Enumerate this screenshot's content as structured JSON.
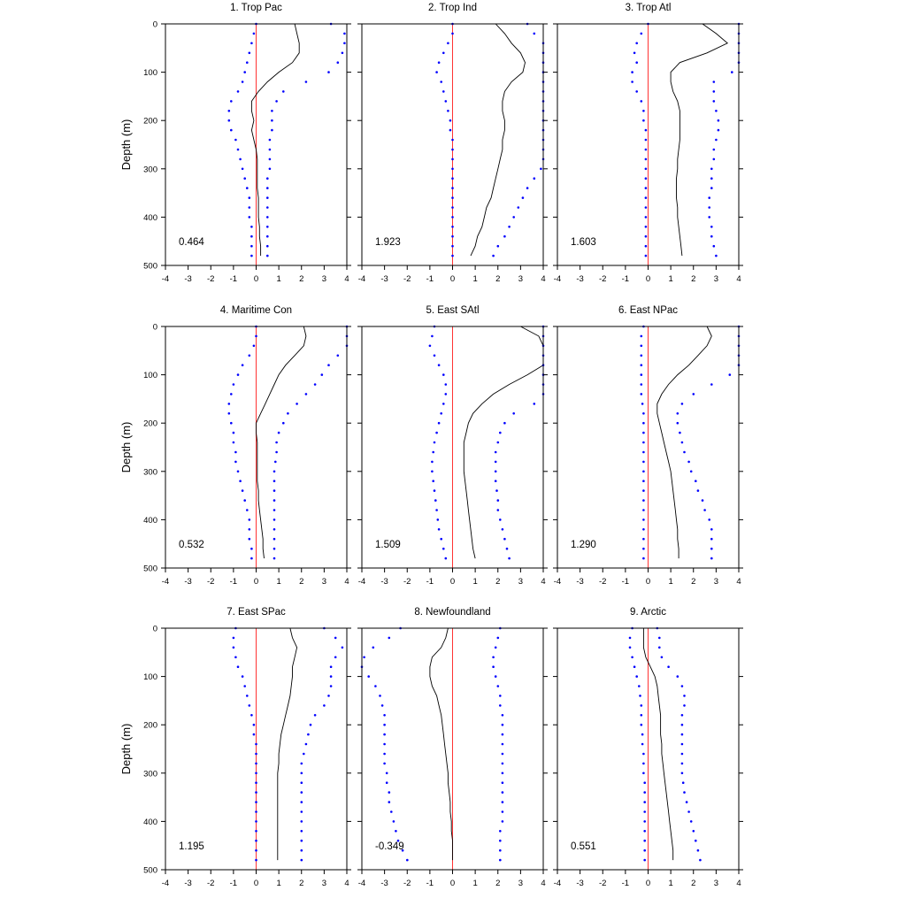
{
  "chart_data": {
    "type": "line",
    "layout": "3x3 panel grid",
    "y_axis_label": "Depth (m)",
    "y_inverted": true,
    "xlim": [
      -4,
      4
    ],
    "ylim": [
      0,
      500
    ],
    "x_ticks": [
      "-4",
      "-3",
      "-2",
      "-1",
      "0",
      "1",
      "2",
      "3",
      "4"
    ],
    "y_ticks": [
      "0",
      "100",
      "200",
      "300",
      "400",
      "500"
    ],
    "colors": {
      "mean_line": "#000000",
      "bound_dots": "#0000ff",
      "zero_line": "#ff3333",
      "axes": "#000000"
    },
    "panels": [
      {
        "title": "1. Trop Pac",
        "value": "0.464",
        "depth": [
          0,
          20,
          40,
          60,
          80,
          100,
          120,
          140,
          160,
          180,
          200,
          220,
          240,
          260,
          280,
          300,
          320,
          340,
          360,
          380,
          400,
          420,
          440,
          460,
          480
        ],
        "mean": [
          1.7,
          1.8,
          1.9,
          1.9,
          1.6,
          1.0,
          0.5,
          0.1,
          -0.2,
          -0.2,
          -0.1,
          -0.2,
          -0.1,
          0.0,
          0.05,
          0.05,
          0.05,
          0.05,
          0.1,
          0.1,
          0.1,
          0.15,
          0.15,
          0.2,
          0.2
        ],
        "upper": [
          3.3,
          3.9,
          3.9,
          3.8,
          3.6,
          3.2,
          2.2,
          1.2,
          0.9,
          0.7,
          0.7,
          0.7,
          0.6,
          0.6,
          0.6,
          0.6,
          0.5,
          0.5,
          0.5,
          0.5,
          0.5,
          0.5,
          0.5,
          0.5,
          0.5
        ],
        "lower": [
          0.0,
          -0.1,
          -0.2,
          -0.3,
          -0.4,
          -0.5,
          -0.6,
          -0.8,
          -1.1,
          -1.2,
          -1.2,
          -1.1,
          -0.9,
          -0.8,
          -0.7,
          -0.6,
          -0.5,
          -0.4,
          -0.3,
          -0.3,
          -0.3,
          -0.2,
          -0.2,
          -0.2,
          -0.2
        ]
      },
      {
        "title": "2. Trop Ind",
        "value": "1.923",
        "depth": [
          0,
          20,
          40,
          60,
          80,
          100,
          120,
          140,
          160,
          180,
          200,
          220,
          240,
          260,
          280,
          300,
          320,
          340,
          360,
          380,
          400,
          420,
          440,
          460,
          480
        ],
        "mean": [
          1.9,
          2.3,
          2.6,
          3.0,
          3.2,
          3.1,
          2.6,
          2.3,
          2.2,
          2.2,
          2.3,
          2.3,
          2.2,
          2.2,
          2.1,
          2.0,
          1.9,
          1.8,
          1.7,
          1.5,
          1.4,
          1.3,
          1.1,
          1.0,
          0.8
        ],
        "upper": [
          3.3,
          3.6,
          4.0,
          4.0,
          4.0,
          4.0,
          4.0,
          4.0,
          4.0,
          4.0,
          4.0,
          4.0,
          4.0,
          4.0,
          4.0,
          3.9,
          3.6,
          3.3,
          3.1,
          2.9,
          2.7,
          2.5,
          2.3,
          2.0,
          1.8
        ],
        "lower": [
          0.0,
          0.0,
          -0.2,
          -0.4,
          -0.6,
          -0.7,
          -0.5,
          -0.4,
          -0.3,
          -0.2,
          -0.1,
          -0.1,
          0.0,
          0.0,
          0.0,
          0.0,
          0.0,
          0.0,
          0.0,
          0.0,
          0.0,
          0.0,
          0.0,
          0.0,
          0.0
        ]
      },
      {
        "title": "3. Trop Atl",
        "value": "1.603",
        "depth": [
          0,
          20,
          40,
          60,
          80,
          100,
          120,
          140,
          160,
          180,
          200,
          220,
          240,
          260,
          280,
          300,
          320,
          340,
          360,
          380,
          400,
          420,
          440,
          460,
          480
        ],
        "mean": [
          2.4,
          3.0,
          3.5,
          2.6,
          1.4,
          1.0,
          1.0,
          1.1,
          1.3,
          1.4,
          1.4,
          1.4,
          1.4,
          1.35,
          1.3,
          1.3,
          1.25,
          1.25,
          1.25,
          1.3,
          1.3,
          1.35,
          1.4,
          1.45,
          1.5
        ],
        "upper": [
          4.0,
          4.0,
          4.0,
          4.0,
          4.0,
          3.7,
          2.9,
          2.9,
          2.9,
          3.0,
          3.1,
          3.1,
          3.0,
          2.9,
          2.9,
          2.8,
          2.8,
          2.8,
          2.7,
          2.7,
          2.7,
          2.8,
          2.8,
          2.9,
          3.0
        ],
        "lower": [
          0.0,
          -0.3,
          -0.5,
          -0.6,
          -0.5,
          -0.7,
          -0.7,
          -0.5,
          -0.3,
          -0.2,
          -0.2,
          -0.1,
          -0.1,
          -0.1,
          -0.1,
          -0.1,
          -0.1,
          -0.1,
          -0.1,
          -0.1,
          -0.1,
          -0.1,
          -0.1,
          -0.1,
          -0.1
        ]
      },
      {
        "title": "4. Maritime Con",
        "value": "0.532",
        "depth": [
          0,
          20,
          40,
          60,
          80,
          100,
          120,
          140,
          160,
          180,
          200,
          220,
          240,
          260,
          280,
          300,
          320,
          340,
          360,
          380,
          400,
          420,
          440,
          460,
          480
        ],
        "mean": [
          2.1,
          2.2,
          2.1,
          1.7,
          1.3,
          1.0,
          0.8,
          0.6,
          0.4,
          0.2,
          0.0,
          0.0,
          0.05,
          0.05,
          0.05,
          0.05,
          0.05,
          0.1,
          0.1,
          0.15,
          0.2,
          0.25,
          0.3,
          0.3,
          0.35
        ],
        "upper": [
          4.0,
          4.0,
          4.0,
          3.6,
          3.2,
          2.9,
          2.6,
          2.2,
          1.8,
          1.4,
          1.2,
          1.0,
          0.9,
          0.9,
          0.85,
          0.8,
          0.8,
          0.8,
          0.8,
          0.8,
          0.8,
          0.8,
          0.8,
          0.8,
          0.8
        ],
        "lower": [
          0.0,
          0.0,
          -0.1,
          -0.3,
          -0.6,
          -0.8,
          -1.0,
          -1.1,
          -1.2,
          -1.2,
          -1.1,
          -1.0,
          -1.0,
          -0.9,
          -0.9,
          -0.8,
          -0.7,
          -0.6,
          -0.5,
          -0.4,
          -0.3,
          -0.3,
          -0.3,
          -0.2,
          -0.2
        ]
      },
      {
        "title": "5. East SAtl",
        "value": "1.509",
        "depth": [
          0,
          20,
          40,
          60,
          80,
          100,
          120,
          140,
          160,
          180,
          200,
          220,
          240,
          260,
          280,
          300,
          320,
          340,
          360,
          380,
          400,
          420,
          440,
          460,
          480
        ],
        "mean": [
          3.0,
          3.8,
          4.0,
          4.0,
          4.0,
          3.3,
          2.5,
          1.8,
          1.3,
          0.9,
          0.7,
          0.6,
          0.5,
          0.5,
          0.5,
          0.5,
          0.55,
          0.6,
          0.65,
          0.7,
          0.75,
          0.8,
          0.85,
          0.9,
          1.0
        ],
        "upper": [
          4.0,
          4.0,
          4.0,
          4.0,
          4.0,
          4.0,
          4.0,
          4.0,
          3.6,
          2.7,
          2.3,
          2.1,
          2.0,
          1.9,
          1.9,
          1.9,
          1.9,
          1.95,
          2.0,
          2.0,
          2.1,
          2.2,
          2.3,
          2.4,
          2.5
        ],
        "lower": [
          -0.8,
          -0.9,
          -1.0,
          -0.8,
          -0.6,
          -0.4,
          -0.3,
          -0.3,
          -0.4,
          -0.5,
          -0.6,
          -0.7,
          -0.8,
          -0.85,
          -0.9,
          -0.9,
          -0.85,
          -0.8,
          -0.75,
          -0.7,
          -0.65,
          -0.6,
          -0.5,
          -0.4,
          -0.3
        ]
      },
      {
        "title": "6. East NPac",
        "value": "1.290",
        "depth": [
          0,
          20,
          40,
          60,
          80,
          100,
          120,
          140,
          160,
          180,
          200,
          220,
          240,
          260,
          280,
          300,
          320,
          340,
          360,
          380,
          400,
          420,
          440,
          460,
          480
        ],
        "mean": [
          2.6,
          2.8,
          2.6,
          2.2,
          1.8,
          1.3,
          0.9,
          0.6,
          0.4,
          0.4,
          0.5,
          0.6,
          0.7,
          0.8,
          0.9,
          1.0,
          1.05,
          1.1,
          1.15,
          1.2,
          1.25,
          1.3,
          1.3,
          1.35,
          1.35
        ],
        "upper": [
          4.0,
          4.0,
          4.0,
          4.0,
          4.0,
          3.6,
          2.8,
          2.0,
          1.5,
          1.3,
          1.3,
          1.4,
          1.5,
          1.6,
          1.8,
          1.9,
          2.1,
          2.2,
          2.4,
          2.5,
          2.7,
          2.8,
          2.8,
          2.8,
          2.8
        ],
        "lower": [
          -0.2,
          -0.3,
          -0.3,
          -0.3,
          -0.3,
          -0.3,
          -0.3,
          -0.3,
          -0.25,
          -0.2,
          -0.2,
          -0.2,
          -0.2,
          -0.2,
          -0.2,
          -0.2,
          -0.2,
          -0.2,
          -0.2,
          -0.2,
          -0.2,
          -0.2,
          -0.2,
          -0.2,
          -0.2
        ]
      },
      {
        "title": "7. East SPac",
        "value": "1.195",
        "depth": [
          0,
          20,
          40,
          60,
          80,
          100,
          120,
          140,
          160,
          180,
          200,
          220,
          240,
          260,
          280,
          300,
          320,
          340,
          360,
          380,
          400,
          420,
          440,
          460,
          480
        ],
        "mean": [
          1.5,
          1.6,
          1.8,
          1.7,
          1.6,
          1.6,
          1.55,
          1.5,
          1.4,
          1.3,
          1.2,
          1.1,
          1.05,
          1.0,
          1.0,
          0.95,
          0.95,
          0.95,
          0.95,
          0.95,
          0.95,
          0.95,
          0.95,
          0.95,
          0.95
        ],
        "upper": [
          3.0,
          3.5,
          3.8,
          3.5,
          3.3,
          3.3,
          3.3,
          3.2,
          3.0,
          2.6,
          2.4,
          2.3,
          2.2,
          2.1,
          2.0,
          2.0,
          2.0,
          2.0,
          2.0,
          2.0,
          2.0,
          2.0,
          2.0,
          2.0,
          2.0
        ],
        "lower": [
          -0.9,
          -1.0,
          -1.0,
          -0.9,
          -0.8,
          -0.6,
          -0.5,
          -0.4,
          -0.3,
          -0.2,
          -0.1,
          -0.1,
          0.0,
          0.0,
          0.0,
          0.0,
          0.0,
          0.0,
          0.0,
          0.0,
          0.0,
          0.0,
          0.0,
          0.0,
          0.0
        ]
      },
      {
        "title": "8. Newfoundland",
        "value": "-0.349",
        "depth": [
          0,
          20,
          40,
          60,
          80,
          100,
          120,
          140,
          160,
          180,
          200,
          220,
          240,
          260,
          280,
          300,
          320,
          340,
          360,
          380,
          400,
          420,
          440,
          460,
          480
        ],
        "mean": [
          -0.2,
          -0.3,
          -0.5,
          -0.9,
          -1.0,
          -1.0,
          -0.9,
          -0.7,
          -0.6,
          -0.5,
          -0.45,
          -0.4,
          -0.35,
          -0.3,
          -0.25,
          -0.2,
          -0.2,
          -0.15,
          -0.1,
          -0.1,
          -0.05,
          -0.05,
          0.0,
          0.0,
          0.0
        ],
        "upper": [
          2.1,
          2.0,
          1.9,
          1.8,
          1.8,
          1.9,
          2.0,
          2.1,
          2.1,
          2.2,
          2.2,
          2.2,
          2.2,
          2.2,
          2.2,
          2.2,
          2.2,
          2.2,
          2.2,
          2.2,
          2.2,
          2.1,
          2.1,
          2.1,
          2.1
        ],
        "lower": [
          -2.3,
          -2.8,
          -3.5,
          -3.9,
          -4.0,
          -3.7,
          -3.4,
          -3.2,
          -3.1,
          -3.0,
          -3.0,
          -3.0,
          -3.0,
          -3.0,
          -3.0,
          -2.9,
          -2.9,
          -2.8,
          -2.8,
          -2.7,
          -2.6,
          -2.5,
          -2.4,
          -2.2,
          -2.0
        ]
      },
      {
        "title": "9. Arctic",
        "value": "0.551",
        "depth": [
          0,
          20,
          40,
          60,
          80,
          100,
          120,
          140,
          160,
          180,
          200,
          220,
          240,
          260,
          280,
          300,
          320,
          340,
          360,
          380,
          400,
          420,
          440,
          460,
          480
        ],
        "mean": [
          -0.2,
          -0.2,
          -0.2,
          -0.1,
          0.1,
          0.3,
          0.4,
          0.45,
          0.5,
          0.55,
          0.55,
          0.55,
          0.6,
          0.6,
          0.65,
          0.7,
          0.75,
          0.8,
          0.85,
          0.9,
          0.95,
          1.0,
          1.05,
          1.1,
          1.1
        ],
        "upper": [
          0.4,
          0.5,
          0.5,
          0.6,
          0.9,
          1.3,
          1.5,
          1.6,
          1.6,
          1.5,
          1.5,
          1.5,
          1.5,
          1.5,
          1.5,
          1.5,
          1.55,
          1.6,
          1.7,
          1.8,
          1.9,
          2.0,
          2.1,
          2.2,
          2.3
        ],
        "lower": [
          -0.7,
          -0.8,
          -0.8,
          -0.7,
          -0.6,
          -0.5,
          -0.4,
          -0.35,
          -0.3,
          -0.3,
          -0.3,
          -0.25,
          -0.25,
          -0.2,
          -0.2,
          -0.2,
          -0.15,
          -0.15,
          -0.15,
          -0.15,
          -0.15,
          -0.15,
          -0.15,
          -0.15,
          -0.15
        ]
      }
    ]
  }
}
